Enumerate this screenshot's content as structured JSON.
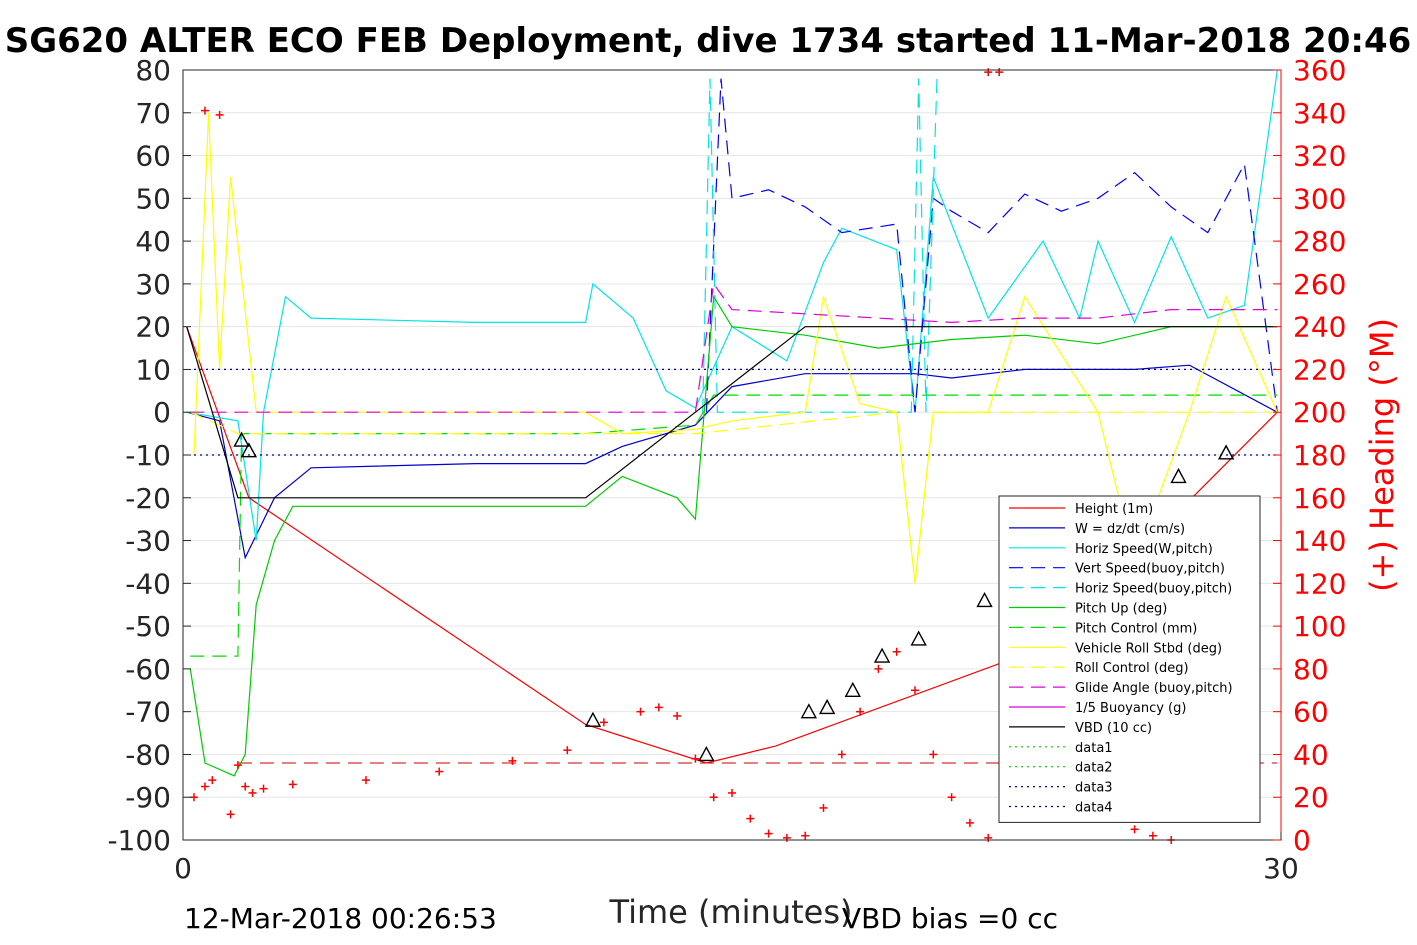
{
  "chart_data": {
    "type": "line",
    "title": "SG620 ALTER ECO FEB Deployment, dive 1734 started 11-Mar-2018 20:46",
    "xlabel": "Time (minutes)",
    "ylabel_right": "(+) Heading (°M)",
    "xlim": [
      0,
      30
    ],
    "ylim": [
      -100,
      80
    ],
    "ylim_right": [
      0,
      360
    ],
    "x_ticks": [
      "0",
      "30"
    ],
    "y_ticks": [
      "80",
      "70",
      "60",
      "50",
      "40",
      "30",
      "20",
      "10",
      "0",
      "-10",
      "-20",
      "-30",
      "-40",
      "-50",
      "-60",
      "-70",
      "-80",
      "-90",
      "-100"
    ],
    "y_right_ticks": [
      "360",
      "340",
      "320",
      "300",
      "280",
      "260",
      "240",
      "220",
      "200",
      "180",
      "160",
      "140",
      "120",
      "100",
      "80",
      "60",
      "40",
      "20",
      "0"
    ],
    "grid": "horizontal",
    "legend_position": "lower-right",
    "footer_left": "12-Mar-2018 00:26:53",
    "footer_right": "VBD bias =0 cc",
    "series": [
      {
        "name": "Height (1m)",
        "color": "#ff0000",
        "style": "solid",
        "x": [
          0.1,
          1.8,
          11.0,
          14.3,
          16.2,
          23.5,
          29.9
        ],
        "y": [
          20,
          -20,
          -73,
          -82,
          -78,
          -55,
          0
        ]
      },
      {
        "name": "W = dz/dt (cm/s)",
        "color": "#0000cc",
        "style": "solid",
        "x": [
          0.1,
          1.0,
          1.7,
          2.5,
          3.5,
          8.0,
          11.0,
          12.0,
          14.0,
          15.0,
          17.0,
          20.0,
          21.0,
          23.0,
          26.0,
          27.5,
          29.9
        ],
        "y": [
          0,
          -2,
          -34,
          -20,
          -13,
          -12,
          -12,
          -8,
          -3,
          6,
          9,
          9,
          8,
          10,
          10,
          11,
          0
        ]
      },
      {
        "name": "Horiz Speed(W,pitch)",
        "color": "#00e5e5",
        "style": "solid",
        "x": [
          0.1,
          1.5,
          2.0,
          2.2,
          2.8,
          3.5,
          8.0,
          11.0,
          11.2,
          12.3,
          13.2,
          14.0,
          15.0,
          16.5,
          17.5,
          18.0,
          19.5,
          20.0,
          20.5,
          22.0,
          23.5,
          24.5,
          25.0,
          26.0,
          27.0,
          28.0,
          29.0,
          29.9
        ],
        "y": [
          0,
          -2,
          -30,
          0,
          27,
          22,
          21,
          21,
          30,
          22,
          5,
          1,
          20,
          12,
          35,
          43,
          38,
          0,
          55,
          22,
          40,
          22,
          40,
          21,
          41,
          22,
          25,
          80
        ]
      },
      {
        "name": "Vert Speed(buoy,pitch)",
        "color": "#0000ff",
        "style": "dashed",
        "x": [
          14.3,
          14.7,
          15.0,
          16.0,
          17.0,
          18.0,
          19.5,
          20.0,
          20.5,
          21.0,
          22.0,
          23.0,
          24.0,
          25.0,
          26.0,
          27.0,
          28.0,
          29.0,
          29.9
        ],
        "y": [
          0,
          78,
          50,
          52,
          48,
          42,
          44,
          0,
          50,
          47,
          42,
          51,
          47,
          50,
          56,
          48,
          42,
          58,
          0
        ]
      },
      {
        "name": "Horiz Speed(buoy,pitch)",
        "color": "#00e5e5",
        "style": "dashed",
        "x": [
          14.2,
          14.4,
          14.6,
          19.9,
          20.1,
          20.3,
          20.6
        ],
        "y": [
          0,
          78,
          0,
          0,
          78,
          0,
          78
        ]
      },
      {
        "name": "Pitch Up (deg)",
        "color": "#00cc00",
        "style": "solid",
        "x": [
          0.2,
          0.6,
          1.4,
          1.7,
          2.0,
          2.5,
          3.0,
          5.0,
          8.0,
          11.0,
          12.0,
          13.5,
          14.0,
          14.5,
          15.0,
          17.0,
          19.0,
          21.0,
          23.0,
          25.0,
          27.0,
          29.9
        ],
        "y": [
          -60,
          -82,
          -85,
          -80,
          -45,
          -30,
          -22,
          -22,
          -22,
          -22,
          -15,
          -20,
          -25,
          27,
          20,
          18,
          15,
          17,
          18,
          16,
          20,
          20
        ]
      },
      {
        "name": "Pitch Control (mm)",
        "color": "#00dd00",
        "style": "dashed",
        "x": [
          0.2,
          1.5,
          1.6,
          11.0,
          14.0,
          14.5,
          29.9
        ],
        "y": [
          -57,
          -57,
          -5,
          -5,
          -3,
          4,
          4
        ]
      },
      {
        "name": "Vehicle Roll Stbd (deg)",
        "color": "#ffff00",
        "style": "solid",
        "x": [
          0.3,
          0.7,
          1.0,
          1.3,
          2.0,
          4.0,
          11.0,
          12.0,
          14.0,
          15.0,
          17.0,
          17.5,
          18.5,
          19.5,
          20.0,
          20.5,
          22.0,
          23.0,
          25.0,
          26.0,
          27.5,
          28.5,
          29.9
        ],
        "y": [
          -10,
          70,
          10,
          55,
          0,
          0,
          0,
          -5,
          -4,
          -2,
          0,
          27,
          2,
          0,
          -40,
          0,
          0,
          27,
          0,
          -35,
          0,
          27,
          0
        ]
      },
      {
        "name": "Roll Control (deg)",
        "color": "#ffff00",
        "style": "dashed",
        "x": [
          0.2,
          1.5,
          11.0,
          14.0,
          19.5,
          20.0,
          20.5,
          29.9
        ],
        "y": [
          0,
          -5,
          -5,
          -5,
          0,
          -40,
          0,
          0
        ]
      },
      {
        "name": "Glide Angle (buoy,pitch)",
        "color": "#dd00dd",
        "style": "dashed",
        "x": [
          0.2,
          11.0,
          14.0,
          14.5,
          15.0,
          17.0,
          19.0,
          21.0,
          23.0,
          25.0,
          27.0,
          29.9
        ],
        "y": [
          0,
          0,
          0,
          30,
          24,
          23,
          22,
          21,
          22,
          22,
          24,
          24
        ]
      },
      {
        "name": "1/5 Buoyancy (g)",
        "color": "#dd00dd",
        "style": "solid",
        "x": [],
        "y": []
      },
      {
        "name": "VBD (10 cc)",
        "color": "#000000",
        "style": "solid",
        "x": [
          0.1,
          1.5,
          11.0,
          14.0,
          17.0,
          29.9
        ],
        "y": [
          20,
          -20,
          -20,
          0,
          20,
          20
        ]
      },
      {
        "name": "data1",
        "color": "#00cc00",
        "style": "dotted",
        "x": [],
        "y": []
      },
      {
        "name": "data2",
        "color": "#00cc00",
        "style": "dotted",
        "x": [],
        "y": []
      },
      {
        "name": "data3",
        "color": "#000080",
        "style": "dotted",
        "x": [
          0.3,
          29.9
        ],
        "y": [
          10,
          10
        ]
      },
      {
        "name": "data4",
        "color": "#000080",
        "style": "dotted",
        "x": [
          0.3,
          29.9
        ],
        "y": [
          -10,
          -10
        ]
      }
    ],
    "reference_lines": [
      {
        "axis": "right",
        "value": 36,
        "color": "#cc0000",
        "style": "dashed",
        "x": [
          1.5,
          29.9
        ]
      }
    ],
    "heading_markers": {
      "axis": "right",
      "color": "#ff0000",
      "x": [
        0.3,
        0.6,
        0.8,
        1.3,
        1.5,
        1.7,
        1.9,
        2.2,
        3.0,
        5.0,
        7.0,
        9.0,
        10.5,
        11.5,
        12.5,
        13.0,
        13.5,
        14.0,
        14.5,
        15.0,
        15.5,
        16.0,
        16.5,
        17.0,
        17.5,
        18.0,
        18.5,
        19.0,
        19.5,
        20.0,
        20.5,
        21.0,
        21.5,
        22.0,
        22.5,
        23.0,
        23.5,
        24.0,
        24.5,
        25.0,
        25.5,
        26.0,
        26.5,
        27.0,
        27.5,
        0.6,
        1.0,
        22.0,
        22.3
      ],
      "y": [
        20,
        25,
        28,
        12,
        35,
        25,
        22,
        24,
        26,
        28,
        32,
        37,
        42,
        55,
        60,
        62,
        58,
        38,
        20,
        22,
        10,
        3,
        1,
        2,
        15,
        40,
        60,
        80,
        88,
        70,
        40,
        20,
        8,
        1,
        10,
        40,
        75,
        80,
        72,
        30,
        10,
        5,
        2,
        0,
        10,
        341,
        339,
        359,
        359
      ]
    },
    "triangle_markers": {
      "color": "#000000",
      "x": [
        1.6,
        1.8,
        11.2,
        14.3,
        17.1,
        17.6,
        18.3,
        19.1,
        20.1,
        21.9,
        22.8,
        24.6,
        27.2,
        28.5
      ],
      "y": [
        -6.5,
        -9,
        -72,
        -80,
        -70,
        -69,
        -65,
        -57,
        -53,
        -44,
        -39,
        -29,
        -15,
        -9.5
      ]
    }
  }
}
